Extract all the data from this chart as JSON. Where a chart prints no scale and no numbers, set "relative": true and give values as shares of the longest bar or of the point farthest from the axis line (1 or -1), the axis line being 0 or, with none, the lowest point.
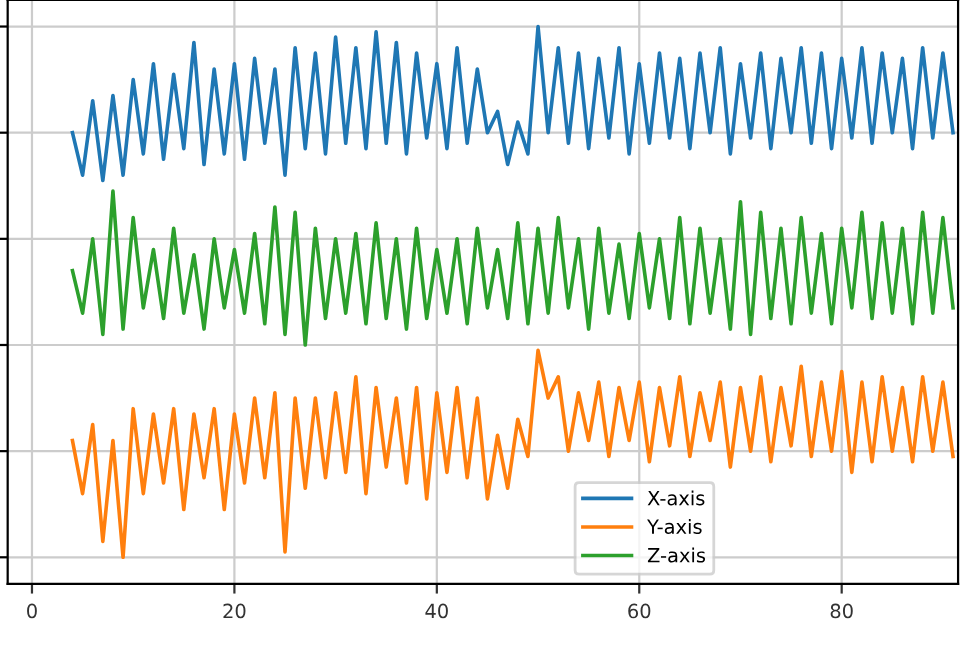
{
  "chart_data": {
    "type": "line",
    "relative": true,
    "x": [
      4,
      5,
      6,
      7,
      8,
      9,
      10,
      11,
      12,
      13,
      14,
      15,
      16,
      17,
      18,
      19,
      20,
      21,
      22,
      23,
      24,
      25,
      26,
      27,
      28,
      29,
      30,
      31,
      32,
      33,
      34,
      35,
      36,
      37,
      38,
      39,
      40,
      41,
      42,
      43,
      44,
      45,
      46,
      47,
      48,
      49,
      50,
      51,
      52,
      53,
      54,
      55,
      56,
      57,
      58,
      59,
      60,
      61,
      62,
      63,
      64,
      65,
      66,
      67,
      68,
      69,
      70,
      71,
      72,
      73,
      74,
      75,
      76,
      77,
      78,
      79,
      80,
      81,
      82,
      83,
      84,
      85,
      86,
      87,
      88,
      89,
      90,
      91
    ],
    "xlim": [
      -2.4,
      91.5
    ],
    "xticks": [
      0,
      20,
      40,
      60,
      80
    ],
    "grid": true,
    "legend": "bottom",
    "tick_labels": "x",
    "series": [
      {
        "name": "X-axis",
        "color": "#1f77b4",
        "values": [
          0.8,
          0.72,
          0.86,
          0.71,
          0.87,
          0.72,
          0.9,
          0.76,
          0.93,
          0.75,
          0.91,
          0.77,
          0.97,
          0.74,
          0.92,
          0.76,
          0.93,
          0.75,
          0.94,
          0.78,
          0.92,
          0.72,
          0.96,
          0.77,
          0.95,
          0.76,
          0.98,
          0.78,
          0.96,
          0.77,
          0.99,
          0.78,
          0.97,
          0.76,
          0.95,
          0.79,
          0.93,
          0.77,
          0.96,
          0.78,
          0.92,
          0.8,
          0.84,
          0.74,
          0.82,
          0.76,
          1.0,
          0.8,
          0.96,
          0.78,
          0.95,
          0.77,
          0.94,
          0.79,
          0.96,
          0.76,
          0.93,
          0.78,
          0.95,
          0.79,
          0.94,
          0.77,
          0.95,
          0.8,
          0.96,
          0.76,
          0.93,
          0.79,
          0.95,
          0.77,
          0.94,
          0.8,
          0.96,
          0.78,
          0.95,
          0.77,
          0.94,
          0.79,
          0.96,
          0.78,
          0.95,
          0.8,
          0.94,
          0.77,
          0.96,
          0.79,
          0.95,
          0.8
        ]
      },
      {
        "name": "Y-axis",
        "color": "#ff7f0e",
        "values": [
          0.22,
          0.12,
          0.25,
          0.03,
          0.22,
          0.0,
          0.28,
          0.12,
          0.27,
          0.14,
          0.28,
          0.09,
          0.27,
          0.15,
          0.28,
          0.09,
          0.27,
          0.14,
          0.3,
          0.15,
          0.31,
          0.01,
          0.3,
          0.13,
          0.3,
          0.15,
          0.31,
          0.16,
          0.34,
          0.12,
          0.32,
          0.17,
          0.3,
          0.14,
          0.32,
          0.11,
          0.31,
          0.16,
          0.32,
          0.15,
          0.3,
          0.11,
          0.23,
          0.13,
          0.26,
          0.19,
          0.39,
          0.3,
          0.34,
          0.2,
          0.31,
          0.22,
          0.33,
          0.19,
          0.32,
          0.22,
          0.33,
          0.18,
          0.32,
          0.21,
          0.34,
          0.19,
          0.31,
          0.22,
          0.33,
          0.17,
          0.32,
          0.2,
          0.34,
          0.18,
          0.32,
          0.21,
          0.36,
          0.19,
          0.33,
          0.2,
          0.35,
          0.16,
          0.33,
          0.18,
          0.34,
          0.2,
          0.32,
          0.18,
          0.34,
          0.2,
          0.33,
          0.19
        ]
      },
      {
        "name": "Z-axis",
        "color": "#2ca02c",
        "values": [
          0.54,
          0.46,
          0.6,
          0.42,
          0.69,
          0.43,
          0.64,
          0.47,
          0.58,
          0.45,
          0.62,
          0.46,
          0.57,
          0.43,
          0.6,
          0.47,
          0.58,
          0.46,
          0.61,
          0.44,
          0.66,
          0.42,
          0.65,
          0.4,
          0.62,
          0.45,
          0.6,
          0.46,
          0.61,
          0.44,
          0.63,
          0.45,
          0.6,
          0.43,
          0.62,
          0.45,
          0.58,
          0.46,
          0.6,
          0.44,
          0.62,
          0.47,
          0.58,
          0.45,
          0.63,
          0.44,
          0.62,
          0.46,
          0.64,
          0.47,
          0.6,
          0.43,
          0.62,
          0.46,
          0.59,
          0.45,
          0.61,
          0.47,
          0.6,
          0.45,
          0.64,
          0.44,
          0.62,
          0.46,
          0.6,
          0.43,
          0.67,
          0.42,
          0.65,
          0.45,
          0.62,
          0.44,
          0.64,
          0.46,
          0.61,
          0.44,
          0.62,
          0.47,
          0.65,
          0.45,
          0.63,
          0.46,
          0.62,
          0.44,
          0.65,
          0.46,
          0.64,
          0.47
        ]
      }
    ]
  }
}
